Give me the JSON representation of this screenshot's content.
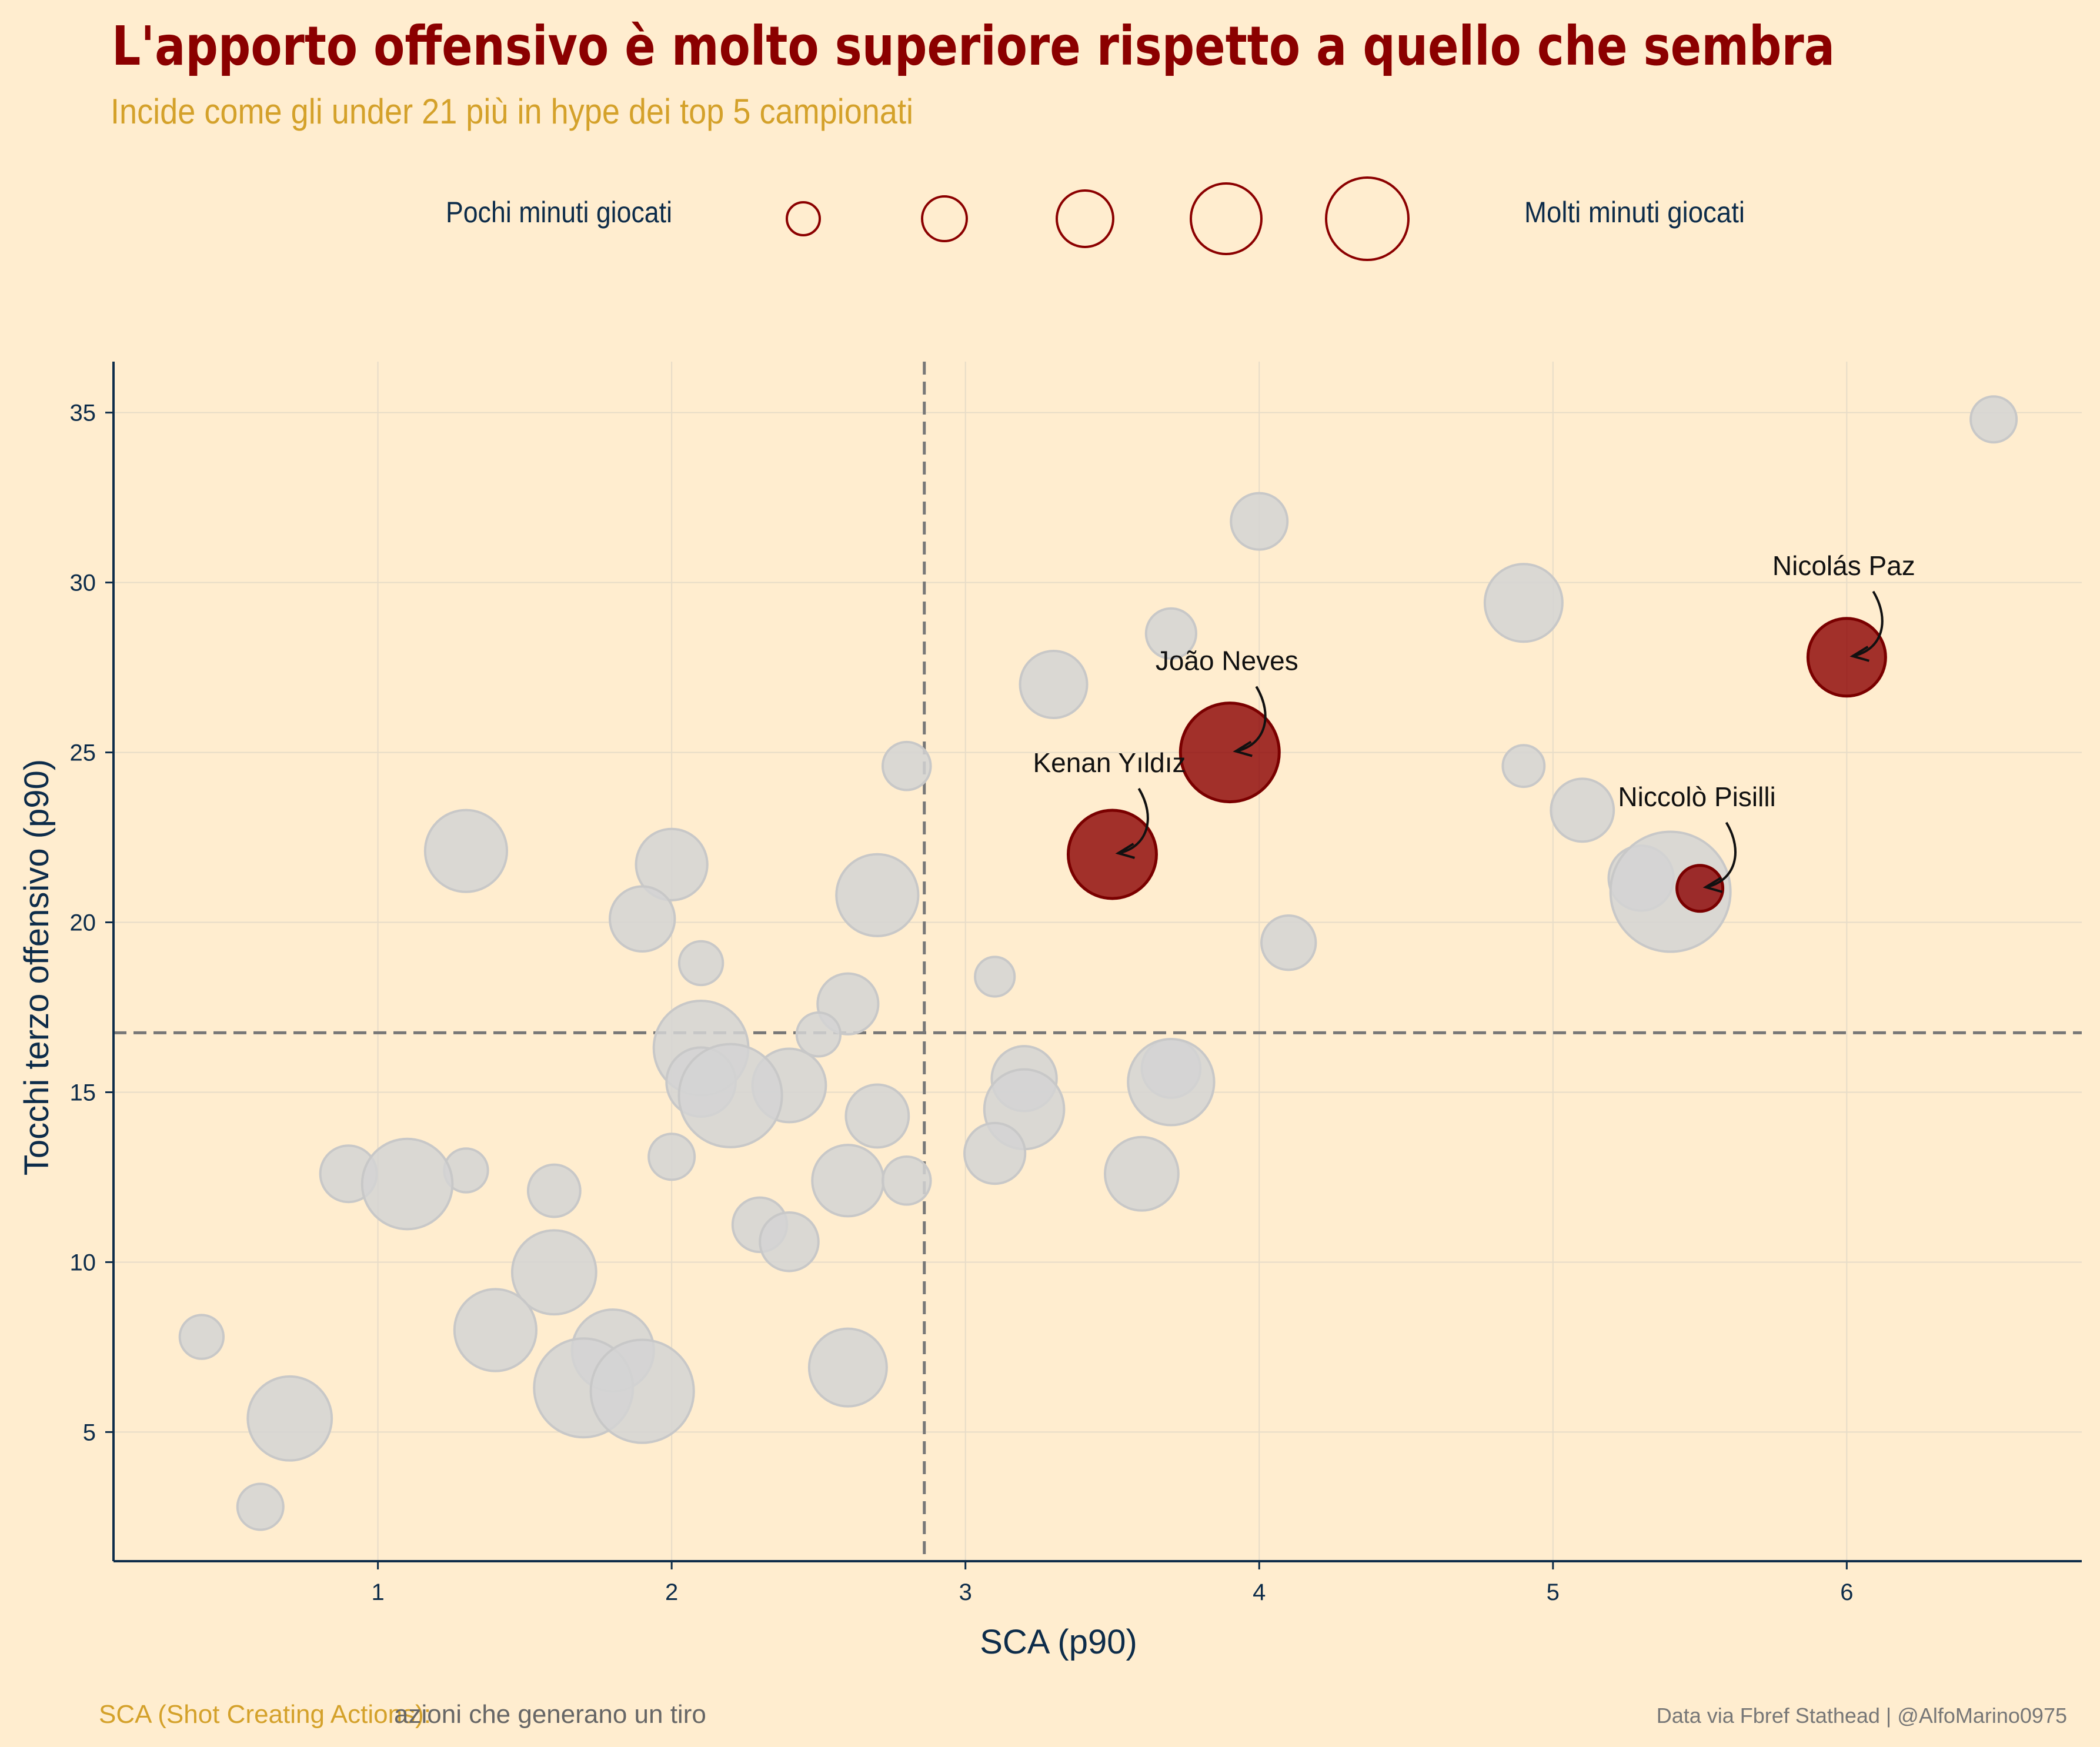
{
  "title": "L'apporto offensivo è molto superiore rispetto a quello che sembra",
  "subtitle": "Incide come gli under 21 più in hype dei top 5 campionati",
  "size_legend": {
    "left_label": "Pochi minuti giocati",
    "right_label": "Molti minuti giocati",
    "color": "#8B0000",
    "levels": [
      1,
      2,
      3,
      4,
      5
    ]
  },
  "footer": {
    "key": "SCA (Shot Creating Actions):",
    "note": "azioni che generano un tiro",
    "credit": "Data via Fbref Stathead | @AlfoMarino0975"
  },
  "colors": {
    "background": "#FFEDCF",
    "highlight": "#8B0000",
    "other": "#D3D3D3",
    "axis": "#0D2C4A",
    "title": "#8B0000",
    "subtitle": "#D4A12A"
  },
  "chart_data": {
    "type": "scatter",
    "xlabel": "SCA (p90)",
    "ylabel": "Tocchi terzo offensivo (p90)",
    "xlim": [
      0.1,
      6.8
    ],
    "ylim": [
      1.2,
      36.5
    ],
    "xticks": [
      1,
      2,
      3,
      4,
      5,
      6
    ],
    "yticks": [
      5,
      10,
      15,
      20,
      25,
      30,
      35
    ],
    "grid": true,
    "reference_lines": {
      "x": 2.86,
      "y": 16.75
    },
    "size_encoding": "minutes played",
    "highlighted": [
      {
        "name": "Nicolás Paz",
        "x": 6.0,
        "y": 27.8,
        "size": 3
      },
      {
        "name": "João Neves",
        "x": 3.9,
        "y": 25.0,
        "size": 4
      },
      {
        "name": "Kenan Yıldız",
        "x": 3.5,
        "y": 22.0,
        "size": 3.5
      },
      {
        "name": "Niccolò Pisilli",
        "x": 5.5,
        "y": 21.0,
        "size": 1.5
      }
    ],
    "others": [
      {
        "x": 6.5,
        "y": 34.8,
        "size": 1.5
      },
      {
        "x": 4.0,
        "y": 31.8,
        "size": 2
      },
      {
        "x": 4.9,
        "y": 29.4,
        "size": 3
      },
      {
        "x": 3.7,
        "y": 28.5,
        "size": 1.7
      },
      {
        "x": 3.3,
        "y": 27.0,
        "size": 2.5
      },
      {
        "x": 2.8,
        "y": 24.6,
        "size": 1.6
      },
      {
        "x": 4.9,
        "y": 24.6,
        "size": 1.3
      },
      {
        "x": 5.1,
        "y": 23.3,
        "size": 2.3
      },
      {
        "x": 1.3,
        "y": 22.1,
        "size": 3.2
      },
      {
        "x": 2.0,
        "y": 21.7,
        "size": 2.7
      },
      {
        "x": 5.3,
        "y": 21.3,
        "size": 2.4
      },
      {
        "x": 5.4,
        "y": 20.9,
        "size": 5
      },
      {
        "x": 2.7,
        "y": 20.8,
        "size": 3.2
      },
      {
        "x": 1.9,
        "y": 20.1,
        "size": 2.4
      },
      {
        "x": 4.1,
        "y": 19.4,
        "size": 1.9
      },
      {
        "x": 2.1,
        "y": 18.8,
        "size": 1.4
      },
      {
        "x": 3.1,
        "y": 18.4,
        "size": 1.2
      },
      {
        "x": 2.6,
        "y": 17.6,
        "size": 2.2
      },
      {
        "x": 2.5,
        "y": 16.7,
        "size": 1.4
      },
      {
        "x": 2.1,
        "y": 16.3,
        "size": 3.8
      },
      {
        "x": 3.7,
        "y": 15.7,
        "size": 2.1
      },
      {
        "x": 3.2,
        "y": 15.4,
        "size": 2.4
      },
      {
        "x": 2.1,
        "y": 15.3,
        "size": 2.6
      },
      {
        "x": 2.4,
        "y": 15.2,
        "size": 2.8
      },
      {
        "x": 3.7,
        "y": 15.3,
        "size": 3.4
      },
      {
        "x": 2.2,
        "y": 14.9,
        "size": 4.2
      },
      {
        "x": 3.2,
        "y": 14.5,
        "size": 3.1
      },
      {
        "x": 2.7,
        "y": 14.3,
        "size": 2.3
      },
      {
        "x": 3.1,
        "y": 13.2,
        "size": 2.2
      },
      {
        "x": 2.0,
        "y": 13.1,
        "size": 1.5
      },
      {
        "x": 1.3,
        "y": 12.7,
        "size": 1.4
      },
      {
        "x": 3.6,
        "y": 12.6,
        "size": 2.8
      },
      {
        "x": 0.9,
        "y": 12.6,
        "size": 2.0
      },
      {
        "x": 2.6,
        "y": 12.4,
        "size": 2.7
      },
      {
        "x": 2.8,
        "y": 12.4,
        "size": 1.6
      },
      {
        "x": 1.1,
        "y": 12.3,
        "size": 3.6
      },
      {
        "x": 1.6,
        "y": 12.1,
        "size": 1.8
      },
      {
        "x": 2.3,
        "y": 11.1,
        "size": 1.9
      },
      {
        "x": 2.4,
        "y": 10.6,
        "size": 2.1
      },
      {
        "x": 1.6,
        "y": 9.7,
        "size": 3.3
      },
      {
        "x": 1.4,
        "y": 8.0,
        "size": 3.2
      },
      {
        "x": 1.8,
        "y": 7.4,
        "size": 3.2
      },
      {
        "x": 2.6,
        "y": 6.9,
        "size": 3.0
      },
      {
        "x": 1.7,
        "y": 6.3,
        "size": 4.0
      },
      {
        "x": 1.9,
        "y": 6.2,
        "size": 4.2
      },
      {
        "x": 0.4,
        "y": 7.8,
        "size": 1.4
      },
      {
        "x": 0.7,
        "y": 5.4,
        "size": 3.3
      },
      {
        "x": 0.6,
        "y": 2.8,
        "size": 1.5
      }
    ]
  }
}
